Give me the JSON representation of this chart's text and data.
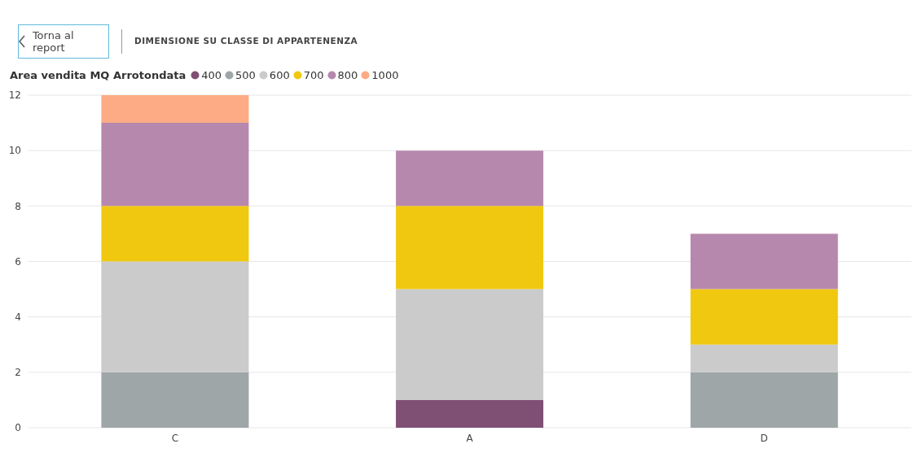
{
  "chart_data": {
    "type": "bar",
    "title": "DIMENSIONE SU CLASSE DI APPARTENENZA",
    "annotations": [
      "Torna al report"
    ],
    "legend_title": "Area vendita MQ Arrotondata",
    "legend": "top left",
    "stacked": true,
    "grid": "y",
    "categories": [
      "C",
      "A",
      "D"
    ],
    "series": [
      {
        "name": "400",
        "color": "#7f4f74",
        "values": [
          null,
          1,
          null
        ]
      },
      {
        "name": "500",
        "color": "#9ea6a8",
        "values": [
          2,
          null,
          2
        ]
      },
      {
        "name": "600",
        "color": "#cbcbcb",
        "values": [
          4,
          4,
          1
        ]
      },
      {
        "name": "700",
        "color": "#f0c80f",
        "values": [
          2,
          3,
          2
        ]
      },
      {
        "name": "800",
        "color": "#b788ad",
        "values": [
          3,
          2,
          2
        ]
      },
      {
        "name": "1000",
        "color": "#fcab84",
        "values": [
          1,
          null,
          null
        ]
      }
    ],
    "ylim": [
      0,
      12
    ],
    "yticks": [
      0,
      2,
      4,
      6,
      8,
      10,
      12
    ]
  }
}
